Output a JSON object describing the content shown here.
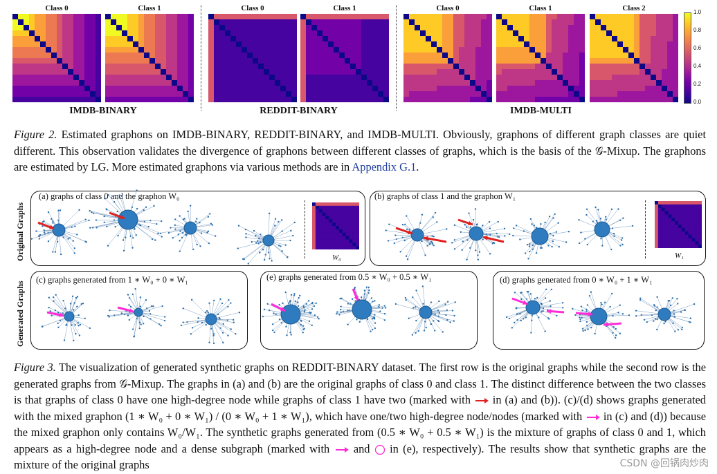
{
  "figure2": {
    "groups": [
      {
        "dataset": "IMDB-BINARY",
        "classes": [
          "Class 0",
          "Class 1"
        ],
        "style": "imdb"
      },
      {
        "dataset": "REDDIT-BINARY",
        "classes": [
          "Class 0",
          "Class 1"
        ],
        "style": "reddit"
      },
      {
        "dataset": "IMDB-MULTI",
        "classes": [
          "Class 0",
          "Class 1",
          "Class 2"
        ],
        "style": "imdbm"
      }
    ],
    "colorbar_ticks": [
      "1.0",
      "0.8",
      "0.6",
      "0.4",
      "0.2",
      "0.0"
    ],
    "colormap": [
      "#0d0887",
      "#46039f",
      "#7201a8",
      "#9c179e",
      "#bd3786",
      "#d8576b",
      "#ed7953",
      "#fb9f3a",
      "#fdca26",
      "#f0f921"
    ],
    "caption_label": "Figure 2.",
    "caption_text": " Estimated graphons on IMDB-BINARY, REDDIT-BINARY, and IMDB-MULTI. Obviously, graphons of different graph classes are quiet different. This observation validates the divergence of graphons between different classes of graphs, which is the basis of the 𝒢-Mixup. The graphons are estimated by LG. More estimated graphons via various methods are in ",
    "caption_link": "Appendix G.1",
    "caption_end": "."
  },
  "figure3": {
    "row_labels": [
      "Original Graphs",
      "Generated Graphs"
    ],
    "panels": [
      {
        "label": "(a) graphs of class 0 and the graphon W₀",
        "graphon_label": "W₀"
      },
      {
        "label": "(b) graphs of class 1 and the graphon W₁",
        "graphon_label": "W₁"
      },
      {
        "label": "(c) graphs generated from 1 ∗ W₀ + 0 ∗ W₁"
      },
      {
        "label": "(e) graphs generated from 0.5 ∗ W₀ + 0.5 ∗ W₁"
      },
      {
        "label": "(d) graphs generated from 0 ∗ W₀ + 1 ∗ W₁"
      }
    ],
    "caption_label": "Figure 3.",
    "caption_p1": " The visualization of generated synthetic graphs on REDDIT-BINARY dataset. The first row is the original graphs while the second row is the generated graphs from 𝒢-Mixup. The graphs in (a) and (b) are the original graphs of class 0 and class 1. The distinct difference between the two classes is that graphs of class 0 have one high-degree node while graphs of class 1 have two (marked with ",
    "caption_p2": " in (a) and (b)). (c)/(d) shows graphs generated with the mixed graphon (1 ∗ W₀ + 0 ∗ W₁) / (0 ∗ W₀ + 1 ∗ W₁), which have one/two high-degree node/nodes (marked with ",
    "caption_p3": " in (c) and (d)) because the mixed graphon only contains W₀/W₁. The synthetic graphs generated from (0.5 ∗ W₀ + 0.5 ∗ W₁) is the mixture of graphs of class 0 and 1, which appears as a high-degree node and a dense subgraph (marked with ",
    "caption_p4": " and ",
    "caption_p5": " in (e), respectively). The results show that synthetic graphs are the mixture of the original graphs",
    "watermark": "CSDN @回锅肉炒肉"
  },
  "colors": {
    "red_arrow": "#e02020",
    "magenta_arrow": "#ff2bd6",
    "node": "#2b6fab",
    "link": "#1f3f9f"
  }
}
